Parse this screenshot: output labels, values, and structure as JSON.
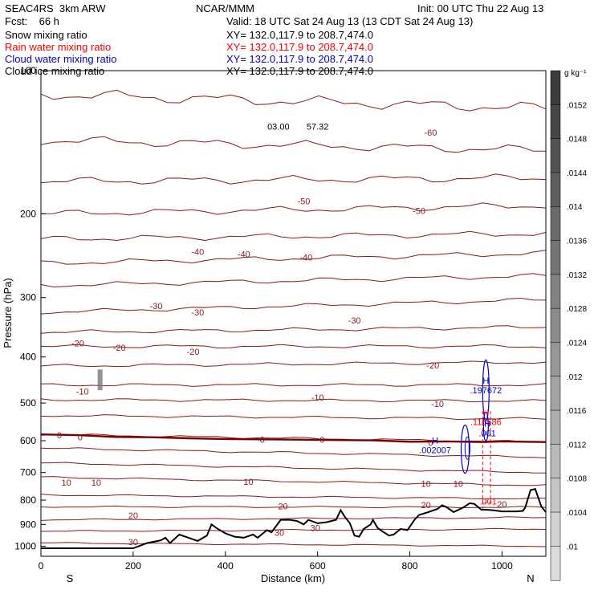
{
  "header": {
    "model": "SEAC4RS  3km ARW",
    "org": "NCAR/MMM",
    "init": "Init: 00 UTC Thu 22 Aug 13",
    "fcst": "Fcst:    66 h",
    "valid": "Valid: 18 UTC Sat 24 Aug 13 (13 CDT Sat 24 Aug 13)"
  },
  "fields": [
    {
      "name": "Snow mixing ratio",
      "xy": "XY= 132.0,117.9 to 208.7,474.0",
      "color": "#000000"
    },
    {
      "name": "Rain water mixing ratio",
      "xy": "XY= 132.0,117.9 to 208.7,474.0",
      "color": "#ff0000"
    },
    {
      "name": "Cloud water mixing ratio",
      "xy": "XY= 132.0,117.9 to 208.7,474.0",
      "color": "#0000cc"
    },
    {
      "name": "Cloud ice mixing ratio",
      "xy": "XY= 132.0,117.9 to 208.7,474.0",
      "color": "#000000"
    }
  ],
  "chart_data": {
    "type": "line",
    "title": "",
    "xlabel": "Distance (km)",
    "ylabel": "Pressure (hPa)",
    "xlim": [
      0,
      1095
    ],
    "ylim": [
      1050,
      100
    ],
    "yscale": "log",
    "x_ticks": [
      0,
      200,
      400,
      600,
      800,
      1000
    ],
    "y_ticks": [
      100,
      200,
      300,
      400,
      500,
      600,
      700,
      800,
      900,
      1000
    ],
    "x_end_labels": {
      "left": "S",
      "right": "N"
    },
    "colorbar": {
      "unit": "g kg⁻¹",
      "labels": [
        ".0152",
        ".0148",
        ".0144",
        ".014",
        ".0136",
        ".0132",
        ".0128",
        ".0124",
        ".012",
        ".0116",
        ".0112",
        ".0108",
        ".0104",
        ".01"
      ]
    },
    "temperature_contour_labels": [
      {
        "text": "-60",
        "x": 845,
        "p": 135
      },
      {
        "text": "-50",
        "x": 570,
        "p": 188
      },
      {
        "text": "-50",
        "x": 820,
        "p": 197
      },
      {
        "text": "-40",
        "x": 340,
        "p": 240
      },
      {
        "text": "-40",
        "x": 440,
        "p": 243
      },
      {
        "text": "-40",
        "x": 575,
        "p": 247
      },
      {
        "text": "-30",
        "x": 250,
        "p": 312
      },
      {
        "text": "-30",
        "x": 340,
        "p": 322
      },
      {
        "text": "-30",
        "x": 680,
        "p": 335
      },
      {
        "text": "-20",
        "x": 80,
        "p": 374
      },
      {
        "text": "-20",
        "x": 170,
        "p": 382
      },
      {
        "text": "-20",
        "x": 330,
        "p": 390
      },
      {
        "text": "-20",
        "x": 850,
        "p": 416
      },
      {
        "text": "-10",
        "x": 90,
        "p": 472
      },
      {
        "text": "-10",
        "x": 600,
        "p": 486
      },
      {
        "text": "-10",
        "x": 860,
        "p": 502
      },
      {
        "text": "0",
        "x": 40,
        "p": 584
      },
      {
        "text": "0",
        "x": 85,
        "p": 589
      },
      {
        "text": "0",
        "x": 480,
        "p": 596
      },
      {
        "text": "0",
        "x": 610,
        "p": 597
      },
      {
        "text": "0",
        "x": 845,
        "p": 606
      },
      {
        "text": "10",
        "x": 55,
        "p": 735
      },
      {
        "text": "10",
        "x": 120,
        "p": 735
      },
      {
        "text": "10",
        "x": 450,
        "p": 732
      },
      {
        "text": "10",
        "x": 835,
        "p": 738
      },
      {
        "text": "10",
        "x": 905,
        "p": 738
      },
      {
        "text": "20",
        "x": 525,
        "p": 824
      },
      {
        "text": "20",
        "x": 835,
        "p": 818
      },
      {
        "text": "20",
        "x": 1000,
        "p": 816
      },
      {
        "text": "20",
        "x": 200,
        "p": 862
      },
      {
        "text": "30",
        "x": 595,
        "p": 914
      },
      {
        "text": "30",
        "x": 517,
        "p": 936
      },
      {
        "text": "30",
        "x": 200,
        "p": 980
      }
    ],
    "contour_levels_celsius": [
      -70,
      -60,
      -50,
      -40,
      -30,
      -20,
      -10,
      0,
      10,
      20,
      30
    ],
    "cloud_annotations": [
      {
        "text": "H",
        "value": ".197672",
        "x": 965,
        "p": 470,
        "color": "#0000cc"
      },
      {
        "text": "H",
        "value": ".115586",
        "x": 965,
        "p": 548,
        "color": "#ff0000"
      },
      {
        "text": "H",
        "value": ".001",
        "x": 968,
        "p": 578,
        "color": "#0000cc"
      },
      {
        "text": "H",
        "value": ".002007",
        "x": 855,
        "p": 628,
        "color": "#0000cc"
      },
      {
        "text": "",
        "value": ".001",
        "x": 970,
        "p": 804,
        "color": "#ff0000"
      },
      {
        "text": "",
        "value": "03.00",
        "x": 515,
        "p": 131,
        "color": "#000000"
      },
      {
        "text": "",
        "value": "57.32",
        "x": 600,
        "p": 131,
        "color": "#000000"
      }
    ],
    "terrain_surface": [
      [
        0,
        1010
      ],
      [
        200,
        1010
      ],
      [
        230,
        985
      ],
      [
        260,
        972
      ],
      [
        270,
        960
      ],
      [
        280,
        985
      ],
      [
        300,
        945
      ],
      [
        320,
        960
      ],
      [
        340,
        975
      ],
      [
        360,
        950
      ],
      [
        370,
        900
      ],
      [
        380,
        915
      ],
      [
        400,
        940
      ],
      [
        420,
        955
      ],
      [
        440,
        960
      ],
      [
        460,
        945
      ],
      [
        470,
        960
      ],
      [
        490,
        925
      ],
      [
        500,
        935
      ],
      [
        520,
        880
      ],
      [
        540,
        880
      ],
      [
        555,
        885
      ],
      [
        570,
        900
      ],
      [
        580,
        880
      ],
      [
        600,
        895
      ],
      [
        620,
        890
      ],
      [
        640,
        880
      ],
      [
        650,
        840
      ],
      [
        660,
        870
      ],
      [
        670,
        895
      ],
      [
        680,
        950
      ],
      [
        690,
        955
      ],
      [
        700,
        920
      ],
      [
        715,
        900
      ],
      [
        720,
        880
      ],
      [
        730,
        915
      ],
      [
        740,
        930
      ],
      [
        755,
        950
      ],
      [
        765,
        945
      ],
      [
        780,
        920
      ],
      [
        795,
        925
      ],
      [
        810,
        880
      ],
      [
        820,
        860
      ],
      [
        840,
        848
      ],
      [
        860,
        835
      ],
      [
        870,
        820
      ],
      [
        880,
        828
      ],
      [
        895,
        848
      ],
      [
        915,
        830
      ],
      [
        930,
        812
      ],
      [
        940,
        815
      ],
      [
        955,
        838
      ],
      [
        965,
        838
      ],
      [
        980,
        840
      ],
      [
        1000,
        845
      ],
      [
        1030,
        845
      ],
      [
        1045,
        843
      ],
      [
        1050,
        830
      ],
      [
        1062,
        762
      ],
      [
        1072,
        758
      ],
      [
        1085,
        825
      ],
      [
        1095,
        848
      ]
    ],
    "isotherm_0C": [
      [
        0,
        582
      ],
      [
        80,
        584
      ],
      [
        160,
        589
      ],
      [
        240,
        590
      ],
      [
        320,
        593
      ],
      [
        400,
        595
      ],
      [
        480,
        596
      ],
      [
        560,
        597
      ],
      [
        640,
        598
      ],
      [
        720,
        599
      ],
      [
        800,
        603
      ],
      [
        880,
        602
      ],
      [
        960,
        604
      ],
      [
        1000,
        602
      ],
      [
        1095,
        604
      ]
    ],
    "isotherm_pressures_left": [
      112,
      140,
      171,
      200,
      226,
      254,
      283,
      322,
      355,
      380,
      418,
      458,
      492,
      531,
      582,
      622,
      668,
      716,
      780,
      826,
      880,
      930,
      984
    ],
    "isotherm_pressures_right": [
      120,
      147,
      168,
      192,
      220,
      242,
      270,
      303,
      346,
      380,
      410,
      458,
      495,
      540,
      604,
      650,
      700,
      745,
      795,
      828,
      870,
      920,
      1000
    ]
  }
}
